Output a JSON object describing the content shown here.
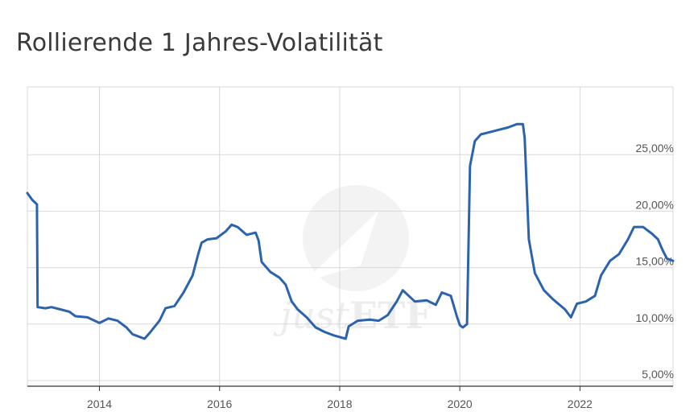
{
  "title": "Rollierende 1 Jahres-Volatilität",
  "watermark": {
    "text_plain": "just",
    "text_bold": "ETF"
  },
  "colors": {
    "line": "#2b63ad",
    "grid": "#d9d9d9",
    "axis": "#333333",
    "title": "#3a3a3a"
  },
  "chart_data": {
    "type": "line",
    "title": "Rollierende 1 Jahres-Volatilität",
    "xlabel": "",
    "ylabel": "",
    "xlim": [
      2012.8,
      2023.55
    ],
    "ylim": [
      4.5,
      31
    ],
    "x_ticks": [
      2014,
      2016,
      2018,
      2020,
      2022
    ],
    "x_tick_labels": [
      "2014",
      "2016",
      "2018",
      "2020",
      "2022"
    ],
    "y_ticks": [
      5,
      10,
      15,
      20,
      25
    ],
    "y_tick_labels": [
      "5,00%",
      "10,00%",
      "15,00%",
      "20,00%",
      "25,00%"
    ],
    "grid": true,
    "legend": "none",
    "series": [
      {
        "values": [
          [
            2012.8,
            21.6
          ],
          [
            2012.88,
            21.0
          ],
          [
            2012.96,
            20.6
          ],
          [
            2012.97,
            11.5
          ],
          [
            2013.1,
            11.4
          ],
          [
            2013.2,
            11.5
          ],
          [
            2013.35,
            11.3
          ],
          [
            2013.5,
            11.1
          ],
          [
            2013.6,
            10.7
          ],
          [
            2013.8,
            10.6
          ],
          [
            2014.0,
            10.1
          ],
          [
            2014.15,
            10.5
          ],
          [
            2014.3,
            10.3
          ],
          [
            2014.45,
            9.7
          ],
          [
            2014.55,
            9.1
          ],
          [
            2014.65,
            8.9
          ],
          [
            2014.75,
            8.7
          ],
          [
            2014.85,
            9.3
          ],
          [
            2015.0,
            10.3
          ],
          [
            2015.1,
            11.4
          ],
          [
            2015.25,
            11.6
          ],
          [
            2015.4,
            12.8
          ],
          [
            2015.55,
            14.3
          ],
          [
            2015.65,
            16.3
          ],
          [
            2015.7,
            17.2
          ],
          [
            2015.8,
            17.5
          ],
          [
            2015.95,
            17.6
          ],
          [
            2016.1,
            18.2
          ],
          [
            2016.2,
            18.8
          ],
          [
            2016.3,
            18.6
          ],
          [
            2016.45,
            17.9
          ],
          [
            2016.6,
            18.1
          ],
          [
            2016.65,
            17.4
          ],
          [
            2016.7,
            15.5
          ],
          [
            2016.85,
            14.6
          ],
          [
            2017.0,
            14.1
          ],
          [
            2017.1,
            13.5
          ],
          [
            2017.2,
            12.0
          ],
          [
            2017.3,
            11.3
          ],
          [
            2017.45,
            10.6
          ],
          [
            2017.6,
            9.7
          ],
          [
            2017.75,
            9.3
          ],
          [
            2017.9,
            9.0
          ],
          [
            2018.1,
            8.7
          ],
          [
            2018.15,
            9.8
          ],
          [
            2018.3,
            10.3
          ],
          [
            2018.5,
            10.4
          ],
          [
            2018.65,
            10.3
          ],
          [
            2018.8,
            10.8
          ],
          [
            2018.95,
            12.0
          ],
          [
            2019.05,
            13.0
          ],
          [
            2019.15,
            12.5
          ],
          [
            2019.25,
            12.0
          ],
          [
            2019.45,
            12.1
          ],
          [
            2019.6,
            11.7
          ],
          [
            2019.7,
            12.8
          ],
          [
            2019.85,
            12.5
          ],
          [
            2019.95,
            10.7
          ],
          [
            2020.0,
            9.9
          ],
          [
            2020.05,
            9.7
          ],
          [
            2020.12,
            10.0
          ],
          [
            2020.17,
            24.0
          ],
          [
            2020.25,
            26.2
          ],
          [
            2020.35,
            26.8
          ],
          [
            2020.5,
            27.0
          ],
          [
            2020.65,
            27.2
          ],
          [
            2020.8,
            27.4
          ],
          [
            2020.95,
            27.7
          ],
          [
            2021.05,
            27.7
          ],
          [
            2021.08,
            26.5
          ],
          [
            2021.15,
            17.5
          ],
          [
            2021.25,
            14.5
          ],
          [
            2021.4,
            13.0
          ],
          [
            2021.55,
            12.2
          ],
          [
            2021.75,
            11.3
          ],
          [
            2021.85,
            10.6
          ],
          [
            2021.95,
            11.8
          ],
          [
            2022.1,
            12.0
          ],
          [
            2022.25,
            12.5
          ],
          [
            2022.35,
            14.3
          ],
          [
            2022.5,
            15.6
          ],
          [
            2022.65,
            16.2
          ],
          [
            2022.8,
            17.5
          ],
          [
            2022.9,
            18.6
          ],
          [
            2023.05,
            18.6
          ],
          [
            2023.2,
            18.0
          ],
          [
            2023.3,
            17.5
          ],
          [
            2023.38,
            16.5
          ],
          [
            2023.45,
            15.8
          ],
          [
            2023.55,
            15.6
          ]
        ]
      }
    ]
  }
}
